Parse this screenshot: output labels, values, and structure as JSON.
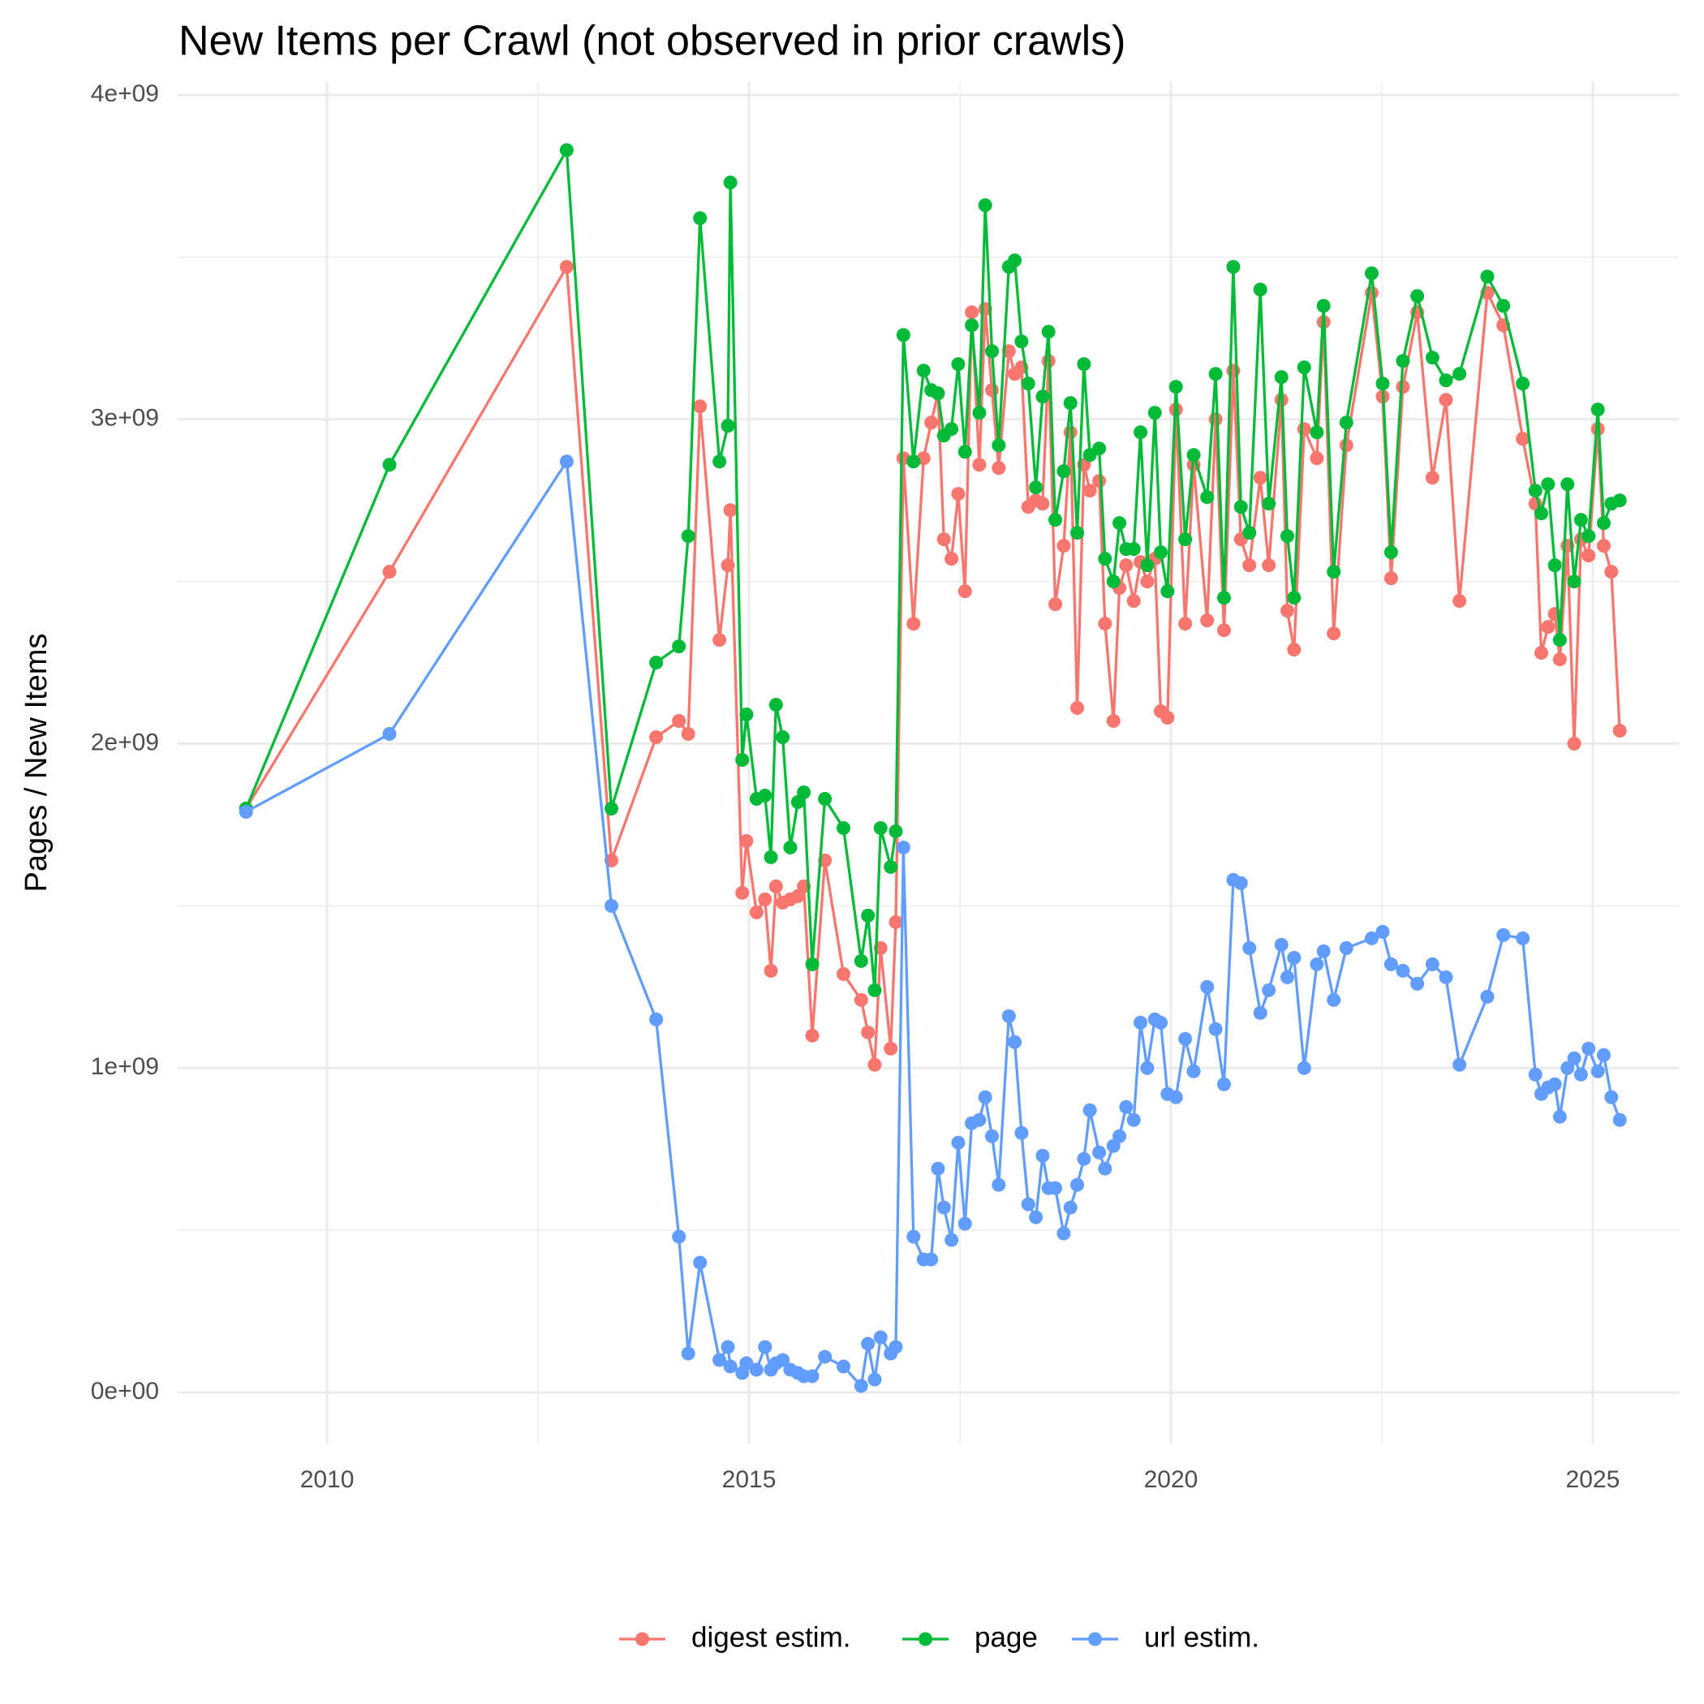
{
  "chart_data": {
    "type": "line",
    "title": "New Items per Crawl (not observed in prior crawls)",
    "y_label": "Pages / New Items",
    "legend": "bottom",
    "grid": true,
    "xlim": [
      2008.23,
      2026.02
    ],
    "xticks": [
      2010,
      2015,
      2020,
      2025
    ],
    "ylim": [
      -160000000.0,
      4040000000.0
    ],
    "yticks": [
      {
        "value": 0,
        "label": "0e+00"
      },
      {
        "value": 1000000000.0,
        "label": "1e+09"
      },
      {
        "value": 2000000000.0,
        "label": "2e+09"
      },
      {
        "value": 3000000000.0,
        "label": "3e+09"
      },
      {
        "value": 4000000000.0,
        "label": "4e+09"
      }
    ],
    "x": [
      2009.04,
      2010.74,
      2012.84,
      2013.37,
      2013.9,
      2014.17,
      2014.28,
      2014.42,
      2014.65,
      2014.75,
      2014.78,
      2014.92,
      2014.97,
      2015.09,
      2015.19,
      2015.26,
      2015.32,
      2015.4,
      2015.49,
      2015.58,
      2015.65,
      2015.75,
      2015.9,
      2016.12,
      2016.33,
      2016.41,
      2016.49,
      2016.56,
      2016.68,
      2016.74,
      2016.83,
      2016.95,
      2017.07,
      2017.16,
      2017.24,
      2017.31,
      2017.4,
      2017.48,
      2017.56,
      2017.64,
      2017.73,
      2017.8,
      2017.88,
      2017.96,
      2018.08,
      2018.15,
      2018.23,
      2018.31,
      2018.4,
      2018.48,
      2018.55,
      2018.63,
      2018.73,
      2018.81,
      2018.89,
      2018.97,
      2019.04,
      2019.15,
      2019.22,
      2019.32,
      2019.39,
      2019.47,
      2019.56,
      2019.64,
      2019.72,
      2019.81,
      2019.88,
      2019.96,
      2020.06,
      2020.17,
      2020.27,
      2020.43,
      2020.53,
      2020.63,
      2020.74,
      2020.83,
      2020.93,
      2021.06,
      2021.16,
      2021.31,
      2021.38,
      2021.46,
      2021.58,
      2021.73,
      2021.81,
      2021.93,
      2022.08,
      2022.38,
      2022.51,
      2022.61,
      2022.75,
      2022.92,
      2023.1,
      2023.26,
      2023.42,
      2023.75,
      2023.94,
      2024.17,
      2024.32,
      2024.39,
      2024.47,
      2024.55,
      2024.61,
      2024.7,
      2024.78,
      2024.86,
      2024.95,
      2025.06,
      2025.13,
      2025.22,
      2025.32
    ],
    "series": [
      {
        "name": "digest estim.",
        "color": "#F8766D",
        "values": [
          1800000000.0,
          2530000000.0,
          3470000000.0,
          1640000000.0,
          2020000000.0,
          2070000000.0,
          2030000000.0,
          3040000000.0,
          2320000000.0,
          2550000000.0,
          2720000000.0,
          1540000000.0,
          1700000000.0,
          1480000000.0,
          1520000000.0,
          1300000000.0,
          1560000000.0,
          1510000000.0,
          1520000000.0,
          1530000000.0,
          1560000000.0,
          1100000000.0,
          1640000000.0,
          1290000000.0,
          1210000000.0,
          1110000000.0,
          1010000000.0,
          1370000000.0,
          1060000000.0,
          1450000000.0,
          2880000000.0,
          2370000000.0,
          2880000000.0,
          2990000000.0,
          3080000000.0,
          2630000000.0,
          2570000000.0,
          2770000000.0,
          2470000000.0,
          3330000000.0,
          2860000000.0,
          3340000000.0,
          3090000000.0,
          2850000000.0,
          3210000000.0,
          3140000000.0,
          3160000000.0,
          2730000000.0,
          2750000000.0,
          2740000000.0,
          3180000000.0,
          2430000000.0,
          2610000000.0,
          2960000000.0,
          2110000000.0,
          2860000000.0,
          2780000000.0,
          2810000000.0,
          2370000000.0,
          2070000000.0,
          2480000000.0,
          2550000000.0,
          2440000000.0,
          2560000000.0,
          2500000000.0,
          2570000000.0,
          2100000000.0,
          2080000000.0,
          3030000000.0,
          2370000000.0,
          2860000000.0,
          2380000000.0,
          3000000000.0,
          2350000000.0,
          3150000000.0,
          2630000000.0,
          2550000000.0,
          2820000000.0,
          2550000000.0,
          3060000000.0,
          2410000000.0,
          2290000000.0,
          2970000000.0,
          2880000000.0,
          3300000000.0,
          2340000000.0,
          2920000000.0,
          3390000000.0,
          3070000000.0,
          2510000000.0,
          3100000000.0,
          3330000000.0,
          2820000000.0,
          3060000000.0,
          2440000000.0,
          3390000000.0,
          3290000000.0,
          2940000000.0,
          2740000000.0,
          2280000000.0,
          2360000000.0,
          2400000000.0,
          2260000000.0,
          2610000000.0,
          2000000000.0,
          2630000000.0,
          2580000000.0,
          2970000000.0,
          2610000000.0,
          2530000000.0,
          2040000000.0
        ]
      },
      {
        "name": "page",
        "color": "#00BA38",
        "values": [
          1800000000.0,
          2860000000.0,
          3830000000.0,
          1800000000.0,
          2250000000.0,
          2300000000.0,
          2640000000.0,
          3620000000.0,
          2870000000.0,
          2980000000.0,
          3730000000.0,
          1950000000.0,
          2090000000.0,
          1830000000.0,
          1840000000.0,
          1650000000.0,
          2120000000.0,
          2020000000.0,
          1680000000.0,
          1820000000.0,
          1850000000.0,
          1320000000.0,
          1830000000.0,
          1740000000.0,
          1330000000.0,
          1470000000.0,
          1240000000.0,
          1740000000.0,
          1620000000.0,
          1730000000.0,
          3260000000.0,
          2870000000.0,
          3150000000.0,
          3090000000.0,
          3080000000.0,
          2950000000.0,
          2970000000.0,
          3170000000.0,
          2900000000.0,
          3290000000.0,
          3020000000.0,
          3660000000.0,
          3210000000.0,
          2920000000.0,
          3470000000.0,
          3490000000.0,
          3240000000.0,
          3110000000.0,
          2790000000.0,
          3070000000.0,
          3270000000.0,
          2690000000.0,
          2840000000.0,
          3050000000.0,
          2650000000.0,
          3170000000.0,
          2890000000.0,
          2910000000.0,
          2570000000.0,
          2500000000.0,
          2680000000.0,
          2600000000.0,
          2600000000.0,
          2960000000.0,
          2550000000.0,
          3020000000.0,
          2590000000.0,
          2470000000.0,
          3100000000.0,
          2630000000.0,
          2890000000.0,
          2760000000.0,
          3140000000.0,
          2450000000.0,
          3470000000.0,
          2730000000.0,
          2650000000.0,
          3400000000.0,
          2740000000.0,
          3130000000.0,
          2640000000.0,
          2450000000.0,
          3160000000.0,
          2960000000.0,
          3350000000.0,
          2530000000.0,
          2990000000.0,
          3450000000.0,
          3110000000.0,
          2590000000.0,
          3180000000.0,
          3380000000.0,
          3190000000.0,
          3120000000.0,
          3140000000.0,
          3440000000.0,
          3350000000.0,
          3110000000.0,
          2780000000.0,
          2710000000.0,
          2800000000.0,
          2550000000.0,
          2320000000.0,
          2800000000.0,
          2500000000.0,
          2690000000.0,
          2640000000.0,
          3030000000.0,
          2680000000.0,
          2740000000.0,
          2750000000.0
        ]
      },
      {
        "name": "url estim.",
        "color": "#619CFF",
        "values": [
          1790000000.0,
          2030000000.0,
          2870000000.0,
          1500000000.0,
          1150000000.0,
          480000000.0,
          120000000.0,
          400000000.0,
          100000000.0,
          140000000.0,
          80000000.0,
          60000000.0,
          90000000.0,
          70000000.0,
          140000000.0,
          70000000.0,
          90000000.0,
          100000000.0,
          70000000.0,
          60000000.0,
          50000000.0,
          50000000.0,
          110000000.0,
          80000000.0,
          20000000.0,
          150000000.0,
          40000000.0,
          170000000.0,
          120000000.0,
          140000000.0,
          1680000000.0,
          480000000.0,
          410000000.0,
          410000000.0,
          690000000.0,
          570000000.0,
          470000000.0,
          770000000.0,
          520000000.0,
          830000000.0,
          840000000.0,
          910000000.0,
          790000000.0,
          640000000.0,
          1160000000.0,
          1080000000.0,
          800000000.0,
          580000000.0,
          540000000.0,
          730000000.0,
          630000000.0,
          630000000.0,
          490000000.0,
          570000000.0,
          640000000.0,
          720000000.0,
          870000000.0,
          740000000.0,
          690000000.0,
          760000000.0,
          790000000.0,
          880000000.0,
          840000000.0,
          1140000000.0,
          1000000000.0,
          1150000000.0,
          1140000000.0,
          920000000.0,
          910000000.0,
          1090000000.0,
          990000000.0,
          1250000000.0,
          1120000000.0,
          950000000.0,
          1580000000.0,
          1570000000.0,
          1370000000.0,
          1170000000.0,
          1240000000.0,
          1380000000.0,
          1280000000.0,
          1340000000.0,
          1000000000.0,
          1320000000.0,
          1360000000.0,
          1210000000.0,
          1370000000.0,
          1400000000.0,
          1420000000.0,
          1320000000.0,
          1300000000.0,
          1260000000.0,
          1320000000.0,
          1280000000.0,
          1010000000.0,
          1220000000.0,
          1410000000.0,
          1400000000.0,
          980000000.0,
          920000000.0,
          940000000.0,
          950000000.0,
          850000000.0,
          1000000000.0,
          1030000000.0,
          980000000.0,
          1060000000.0,
          990000000.0,
          1040000000.0,
          910000000.0,
          840000000.0
        ]
      }
    ]
  }
}
